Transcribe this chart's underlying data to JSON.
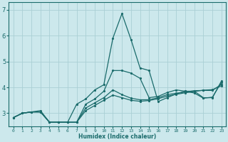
{
  "xlabel": "Humidex (Indice chaleur)",
  "ylabel": "",
  "bg_color": "#cce8ec",
  "grid_color": "#aacfd5",
  "line_color": "#1a6b6b",
  "xlim": [
    -0.5,
    23.5
  ],
  "ylim": [
    2.5,
    7.3
  ],
  "yticks": [
    3,
    4,
    5,
    6,
    7
  ],
  "xticks": [
    0,
    1,
    2,
    3,
    4,
    5,
    6,
    7,
    8,
    9,
    10,
    11,
    12,
    13,
    14,
    15,
    16,
    17,
    18,
    19,
    20,
    21,
    22,
    23
  ],
  "lines": [
    {
      "x": [
        0,
        1,
        2,
        3,
        4,
        5,
        6,
        7,
        8,
        9,
        10,
        11,
        12,
        13,
        14,
        15,
        16,
        17,
        18,
        19,
        20,
        21,
        22,
        23
      ],
      "y": [
        2.83,
        3.0,
        3.05,
        3.05,
        2.65,
        2.65,
        2.65,
        3.35,
        3.55,
        3.9,
        4.1,
        5.9,
        6.85,
        5.85,
        4.75,
        4.65,
        3.45,
        3.6,
        3.75,
        3.85,
        3.85,
        3.6,
        3.6,
        4.25
      ]
    },
    {
      "x": [
        0,
        1,
        2,
        3,
        4,
        5,
        6,
        7,
        8,
        9,
        10,
        11,
        12,
        13,
        14,
        15,
        16,
        17,
        18,
        19,
        20,
        21,
        22,
        23
      ],
      "y": [
        2.83,
        3.0,
        3.05,
        3.05,
        2.65,
        2.65,
        2.65,
        2.65,
        3.35,
        3.55,
        3.85,
        4.65,
        4.65,
        4.55,
        4.35,
        3.6,
        3.65,
        3.8,
        3.9,
        3.85,
        3.78,
        3.58,
        3.62,
        4.2
      ]
    },
    {
      "x": [
        0,
        1,
        2,
        3,
        4,
        5,
        6,
        7,
        8,
        9,
        10,
        11,
        12,
        13,
        14,
        15,
        16,
        17,
        18,
        19,
        20,
        21,
        22,
        23
      ],
      "y": [
        2.83,
        3.0,
        3.05,
        3.05,
        2.65,
        2.65,
        2.65,
        2.65,
        3.2,
        3.4,
        3.6,
        3.9,
        3.72,
        3.58,
        3.52,
        3.52,
        3.6,
        3.72,
        3.77,
        3.82,
        3.87,
        3.88,
        3.88,
        4.12
      ]
    },
    {
      "x": [
        0,
        1,
        2,
        3,
        4,
        5,
        6,
        7,
        8,
        9,
        10,
        11,
        12,
        13,
        14,
        15,
        16,
        17,
        18,
        19,
        20,
        21,
        22,
        23
      ],
      "y": [
        2.83,
        3.0,
        3.05,
        3.1,
        2.65,
        2.65,
        2.65,
        2.65,
        3.1,
        3.3,
        3.5,
        3.7,
        3.6,
        3.5,
        3.46,
        3.49,
        3.56,
        3.66,
        3.73,
        3.79,
        3.84,
        3.89,
        3.91,
        4.06
      ]
    }
  ]
}
